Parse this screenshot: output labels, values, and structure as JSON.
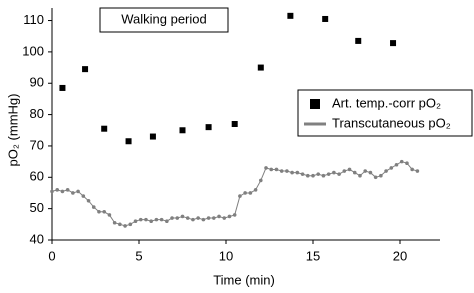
{
  "chart_data": {
    "type": "scatter-line",
    "annotation": "Walking period",
    "x_label": "Time (min)",
    "y_label": "pO₂ (mmHg)",
    "xlim": [
      0,
      22.5
    ],
    "ylim": [
      40,
      114
    ],
    "xticks": [
      0,
      5,
      10,
      15,
      20
    ],
    "yticks": [
      40,
      50,
      60,
      70,
      80,
      90,
      100,
      110
    ],
    "legend": "right",
    "series": [
      {
        "name": "Art. temp.-corr pO₂",
        "color": "#000000",
        "marker": "square",
        "x": [
          0.6,
          1.9,
          3.0,
          4.4,
          5.8,
          7.5,
          9.0,
          10.5,
          12.0,
          13.7,
          15.7,
          17.6,
          19.6
        ],
        "values": [
          88.5,
          94.5,
          75.5,
          71.5,
          73,
          75,
          76,
          77,
          95,
          111.5,
          110.5,
          103.5,
          102.8
        ]
      },
      {
        "name": "Transcutaneous pO₂",
        "color": "#808080",
        "marker": "line",
        "x": [
          0,
          0.3,
          0.6,
          0.9,
          1.2,
          1.5,
          1.8,
          2.1,
          2.4,
          2.7,
          3.0,
          3.3,
          3.6,
          3.9,
          4.2,
          4.5,
          4.8,
          5.1,
          5.4,
          5.7,
          6.0,
          6.3,
          6.6,
          6.9,
          7.2,
          7.5,
          7.8,
          8.1,
          8.4,
          8.7,
          9.0,
          9.3,
          9.6,
          9.9,
          10.2,
          10.5,
          10.8,
          11.1,
          11.4,
          11.7,
          12.0,
          12.3,
          12.6,
          12.9,
          13.2,
          13.5,
          13.8,
          14.1,
          14.4,
          14.7,
          15.0,
          15.3,
          15.6,
          15.9,
          16.2,
          16.5,
          16.8,
          17.1,
          17.4,
          17.7,
          18.0,
          18.3,
          18.6,
          18.9,
          19.2,
          19.5,
          19.8,
          20.1,
          20.4,
          20.7,
          21.0
        ],
        "values": [
          55.5,
          56,
          55.5,
          56,
          55,
          55.5,
          54,
          52.5,
          50.5,
          49,
          49,
          48,
          45.5,
          45,
          44.5,
          45,
          46,
          46.5,
          46.5,
          46,
          46.5,
          46.5,
          46,
          47,
          47,
          47.5,
          47,
          46.5,
          47,
          46.5,
          47,
          47,
          47.5,
          47,
          47.5,
          48,
          54,
          55,
          55,
          56,
          59,
          63,
          62.5,
          62.5,
          62,
          62,
          61.5,
          61.5,
          61,
          60.5,
          60.5,
          61,
          60.5,
          61,
          61.5,
          61,
          62,
          62.5,
          61.5,
          60.5,
          62,
          61.5,
          60,
          60.5,
          62,
          63,
          64,
          65,
          64.5,
          62.5,
          62
        ]
      }
    ]
  }
}
